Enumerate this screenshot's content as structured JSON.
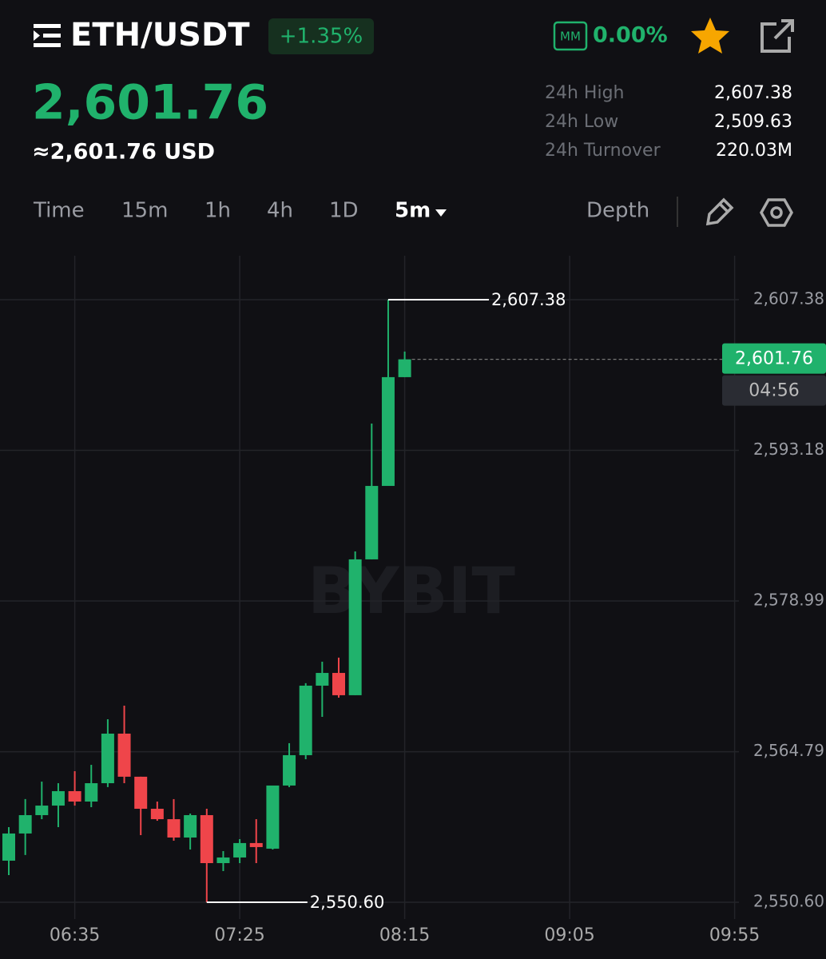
{
  "header": {
    "pair": "ETH/USDT",
    "change": "+1.35%",
    "mm_label": "MM",
    "mm_value": "0.00%"
  },
  "price": {
    "last": "2,601.76",
    "usd": "≈2,601.76 USD"
  },
  "stats": [
    {
      "label": "24h High",
      "value": "2,607.38"
    },
    {
      "label": "24h Low",
      "value": "2,509.63"
    },
    {
      "label": "24h Turnover",
      "value": "220.03M"
    }
  ],
  "tabs": [
    "Time",
    "15m",
    "1h",
    "4h",
    "1D",
    "5m"
  ],
  "depth": "Depth",
  "chart_data": {
    "type": "candlestick",
    "watermark": "BYBIT",
    "up_color": "#20b26c",
    "down_color": "#ef454a",
    "grid": true,
    "x": [
      "06:15",
      "06:20",
      "06:25",
      "06:30",
      "06:35",
      "06:40",
      "06:45",
      "06:50",
      "06:55",
      "07:00",
      "07:05",
      "07:10",
      "07:15",
      "07:20",
      "07:25",
      "07:30",
      "07:35",
      "07:40",
      "07:45",
      "07:50",
      "07:55",
      "08:00",
      "08:05",
      "08:10",
      "08:15"
    ],
    "open": [
      2554.52,
      2557.08,
      2558.81,
      2559.71,
      2561.07,
      2560.09,
      2561.82,
      2566.49,
      2562.43,
      2559.41,
      2558.43,
      2556.7,
      2558.81,
      2554.29,
      2554.82,
      2556.18,
      2555.65,
      2561.6,
      2564.46,
      2571.01,
      2572.21,
      2570.11,
      2582.91,
      2589.83,
      2600.08
    ],
    "high": [
      2557.68,
      2560.32,
      2561.97,
      2561.82,
      2562.95,
      2563.55,
      2567.85,
      2569.13,
      2562.43,
      2560.09,
      2560.32,
      2558.96,
      2559.41,
      2555.42,
      2556.55,
      2558.43,
      2561.6,
      2565.59,
      2571.24,
      2573.27,
      2573.65,
      2583.66,
      2595.71,
      2607.38,
      2602.49
    ],
    "low": [
      2553.16,
      2555.05,
      2558.43,
      2557.68,
      2559.71,
      2559.56,
      2561.45,
      2561.82,
      2556.93,
      2558.28,
      2556.4,
      2555.57,
      2550.6,
      2553.54,
      2554.29,
      2554.29,
      2555.57,
      2561.45,
      2564.08,
      2568.07,
      2569.88,
      2570.11,
      2582.91,
      2589.83,
      2600.08
    ],
    "close": [
      2557.08,
      2558.81,
      2559.71,
      2561.07,
      2560.09,
      2561.82,
      2566.49,
      2562.43,
      2559.41,
      2558.43,
      2556.7,
      2558.81,
      2554.29,
      2554.82,
      2556.18,
      2555.8,
      2561.6,
      2564.46,
      2571.01,
      2572.21,
      2570.11,
      2582.91,
      2589.83,
      2600.08,
      2601.76
    ],
    "ylim": [
      2549.02,
      2611.52
    ],
    "yticks": [
      {
        "value": 2607.38,
        "label": "2,607.38"
      },
      {
        "value": 2593.18,
        "label": "2,593.18"
      },
      {
        "value": 2578.99,
        "label": "2,578.99"
      },
      {
        "value": 2564.79,
        "label": "2,564.79"
      },
      {
        "value": 2550.6,
        "label": "2,550.60"
      }
    ],
    "xticks": [
      "06:35",
      "07:25",
      "08:15",
      "09:05",
      "09:55"
    ],
    "high_marker": {
      "value": 2607.38,
      "label": "2,607.38"
    },
    "low_marker": {
      "value": 2550.6,
      "label": "2,550.60"
    },
    "last_price": {
      "value": 2601.76,
      "label": "2,601.76"
    },
    "countdown": "04:56"
  }
}
